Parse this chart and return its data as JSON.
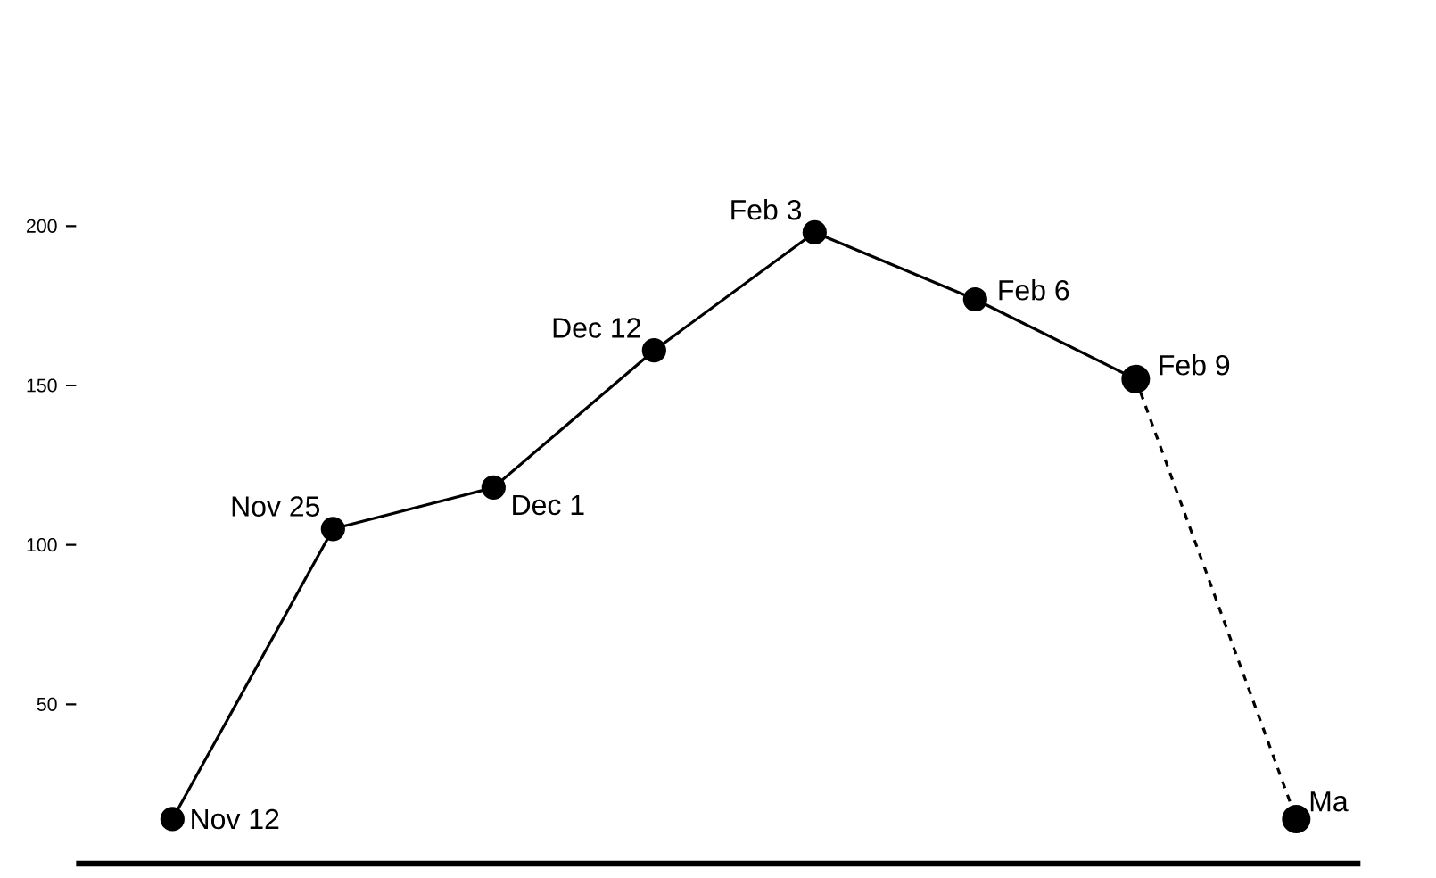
{
  "chart_data": {
    "type": "line",
    "ylim": [
      0,
      200
    ],
    "yticks": [
      50,
      100,
      150,
      200
    ],
    "marker": "circle",
    "categories": [
      null,
      null,
      null,
      null,
      null,
      null,
      null,
      null
    ],
    "series": [
      {
        "color": "#000000",
        "line_style": "solid",
        "values": [
          14,
          105,
          118,
          161,
          198,
          177,
          152,
          null
        ]
      },
      {
        "color": "#000000",
        "line_style": "dashed",
        "values": [
          null,
          null,
          null,
          null,
          null,
          null,
          152,
          14
        ]
      }
    ],
    "annotations": [
      "Nov 12",
      "Nov 25",
      "Dec 1",
      "Dec 12",
      "Feb 3",
      "Feb 6",
      "Feb 9",
      "Ma"
    ]
  }
}
